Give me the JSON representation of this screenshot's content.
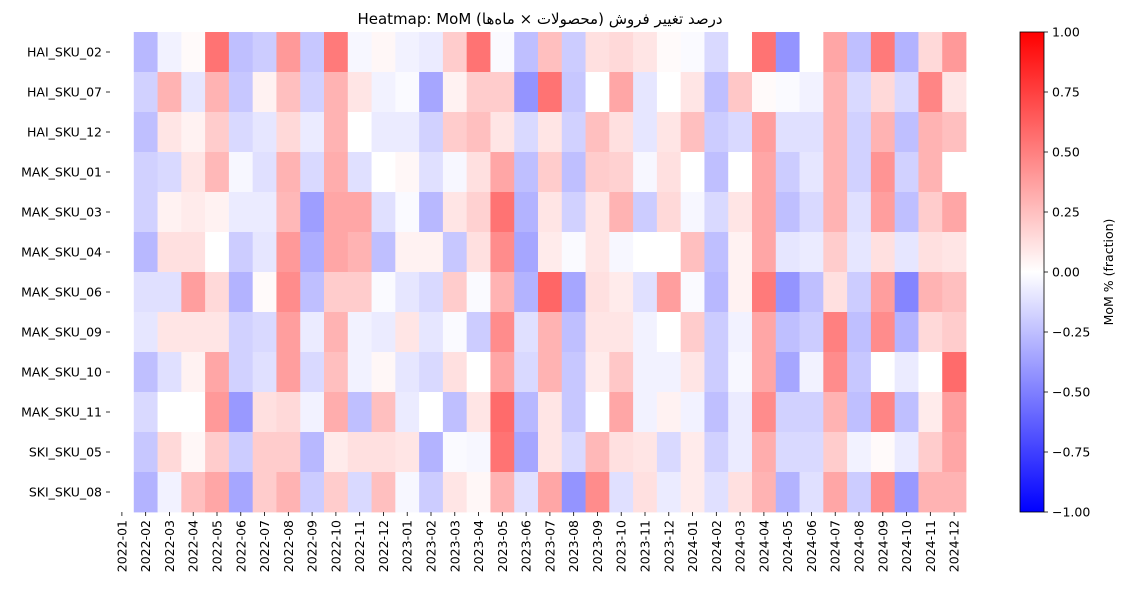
{
  "chart_data": {
    "type": "heatmap",
    "title": "Heatmap: MoM درصد تغییر فروش (محصولات × ماه‌ها)",
    "colorbar_label": "MoM % (fraction)",
    "colormap": "bwr",
    "colors": {
      "low": "#0000ff",
      "mid": "#ffffff",
      "high": "#ff0000"
    },
    "vmin": -1.0,
    "vmax": 1.0,
    "colorbar_ticks": [
      {
        "value": 1.0,
        "label": "1.00"
      },
      {
        "value": 0.75,
        "label": "0.75"
      },
      {
        "value": 0.5,
        "label": "0.50"
      },
      {
        "value": 0.25,
        "label": "0.25"
      },
      {
        "value": 0.0,
        "label": "0.00"
      },
      {
        "value": -0.25,
        "label": "−0.25"
      },
      {
        "value": -0.5,
        "label": "−0.50"
      },
      {
        "value": -0.75,
        "label": "−0.75"
      },
      {
        "value": -1.0,
        "label": "−1.00"
      }
    ],
    "rows": [
      "HAI_SKU_02",
      "HAI_SKU_07",
      "HAI_SKU_12",
      "MAK_SKU_01",
      "MAK_SKU_03",
      "MAK_SKU_04",
      "MAK_SKU_06",
      "MAK_SKU_09",
      "MAK_SKU_10",
      "MAK_SKU_11",
      "SKI_SKU_05",
      "SKI_SKU_08"
    ],
    "columns": [
      "2022-01",
      "2022-02",
      "2022-03",
      "2022-04",
      "2022-05",
      "2022-06",
      "2022-07",
      "2022-08",
      "2022-09",
      "2022-10",
      "2022-11",
      "2022-12",
      "2023-01",
      "2023-02",
      "2023-03",
      "2023-04",
      "2023-05",
      "2023-06",
      "2023-07",
      "2023-08",
      "2023-09",
      "2023-10",
      "2023-11",
      "2023-12",
      "2024-01",
      "2024-02",
      "2024-03",
      "2024-04",
      "2024-05",
      "2024-06",
      "2024-07",
      "2024-08",
      "2024-09",
      "2024-10",
      "2024-11",
      "2024-12"
    ],
    "values": [
      [
        null,
        -0.28,
        -0.05,
        0.02,
        0.55,
        -0.25,
        -0.2,
        0.4,
        -0.22,
        0.52,
        -0.03,
        0.03,
        -0.05,
        -0.08,
        0.2,
        0.55,
        -0.02,
        -0.25,
        0.25,
        -0.2,
        0.12,
        0.15,
        0.1,
        0.02,
        -0.02,
        -0.15,
        0.0,
        0.55,
        -0.42,
        0.0,
        0.35,
        -0.25,
        0.52,
        -0.3,
        0.15,
        0.4
      ],
      [
        null,
        -0.18,
        0.3,
        -0.1,
        0.3,
        -0.22,
        0.05,
        0.25,
        -0.18,
        0.3,
        0.1,
        -0.05,
        -0.02,
        -0.35,
        0.05,
        0.2,
        0.2,
        -0.42,
        0.55,
        -0.22,
        0.0,
        0.35,
        -0.1,
        0.0,
        0.1,
        -0.25,
        0.22,
        0.02,
        -0.02,
        -0.05,
        0.3,
        -0.15,
        0.15,
        -0.15,
        0.48,
        0.1
      ],
      [
        null,
        -0.25,
        0.1,
        0.05,
        0.2,
        -0.15,
        -0.1,
        0.15,
        -0.08,
        0.3,
        0.0,
        -0.08,
        -0.08,
        -0.18,
        0.2,
        0.25,
        0.1,
        -0.15,
        0.1,
        -0.18,
        0.25,
        0.12,
        -0.1,
        0.1,
        0.25,
        -0.2,
        -0.15,
        0.38,
        -0.12,
        -0.12,
        0.3,
        -0.18,
        0.3,
        -0.25,
        0.3,
        0.25
      ],
      [
        null,
        -0.18,
        -0.15,
        0.1,
        0.28,
        -0.03,
        -0.12,
        0.3,
        -0.15,
        0.32,
        -0.12,
        0.0,
        0.03,
        -0.12,
        -0.03,
        0.12,
        0.35,
        -0.25,
        0.2,
        -0.25,
        0.2,
        0.18,
        -0.03,
        0.12,
        0.0,
        -0.25,
        0.0,
        0.35,
        -0.2,
        -0.1,
        0.3,
        -0.18,
        0.42,
        -0.18,
        0.3,
        0.0
      ],
      [
        null,
        -0.18,
        0.05,
        0.08,
        0.05,
        -0.08,
        -0.08,
        0.28,
        -0.38,
        0.35,
        0.35,
        -0.12,
        -0.02,
        -0.28,
        0.1,
        0.18,
        0.55,
        -0.3,
        0.1,
        -0.18,
        0.1,
        0.3,
        -0.2,
        0.15,
        -0.03,
        -0.15,
        0.1,
        0.35,
        -0.25,
        -0.15,
        0.3,
        -0.12,
        0.38,
        -0.25,
        0.2,
        0.35
      ],
      [
        null,
        -0.28,
        0.12,
        0.12,
        0.0,
        -0.2,
        -0.1,
        0.4,
        -0.32,
        0.35,
        0.3,
        -0.25,
        0.05,
        0.05,
        -0.22,
        0.12,
        0.45,
        -0.35,
        0.08,
        -0.02,
        0.1,
        -0.03,
        0.0,
        0.0,
        0.25,
        -0.25,
        0.05,
        0.35,
        -0.1,
        -0.08,
        0.2,
        -0.1,
        0.12,
        -0.1,
        0.12,
        0.1
      ],
      [
        null,
        -0.12,
        -0.12,
        0.38,
        0.15,
        -0.3,
        0.02,
        0.45,
        -0.25,
        0.2,
        0.2,
        -0.02,
        -0.1,
        -0.15,
        0.2,
        -0.02,
        0.3,
        -0.3,
        0.6,
        -0.35,
        0.12,
        0.08,
        -0.12,
        0.38,
        -0.02,
        -0.28,
        0.05,
        0.52,
        -0.42,
        -0.25,
        0.12,
        -0.2,
        0.38,
        -0.48,
        0.3,
        0.25
      ],
      [
        null,
        -0.1,
        0.1,
        0.1,
        0.1,
        -0.18,
        -0.15,
        0.38,
        -0.08,
        0.3,
        -0.05,
        -0.08,
        0.1,
        -0.1,
        -0.02,
        -0.2,
        0.45,
        -0.12,
        0.3,
        -0.25,
        0.1,
        0.1,
        -0.05,
        0.0,
        0.2,
        -0.2,
        -0.05,
        0.35,
        -0.25,
        -0.2,
        0.5,
        -0.25,
        0.45,
        -0.3,
        0.15,
        0.2
      ],
      [
        null,
        -0.25,
        -0.12,
        0.05,
        0.35,
        -0.18,
        -0.12,
        0.38,
        -0.15,
        0.25,
        -0.05,
        0.03,
        -0.1,
        -0.15,
        0.12,
        0.0,
        0.35,
        -0.15,
        0.3,
        -0.22,
        0.08,
        0.22,
        -0.05,
        -0.05,
        0.1,
        -0.2,
        -0.03,
        0.35,
        -0.35,
        -0.05,
        0.45,
        -0.22,
        0.0,
        -0.08,
        0.0,
        0.58
      ],
      [
        null,
        -0.15,
        0.0,
        0.0,
        0.4,
        -0.4,
        0.12,
        0.15,
        -0.05,
        0.32,
        -0.25,
        0.25,
        -0.08,
        0.0,
        -0.25,
        0.1,
        0.58,
        -0.28,
        0.1,
        -0.22,
        0.0,
        0.35,
        -0.05,
        0.05,
        -0.05,
        -0.25,
        -0.08,
        0.45,
        -0.18,
        -0.18,
        0.3,
        -0.25,
        0.48,
        -0.25,
        0.08,
        0.38
      ],
      [
        null,
        -0.22,
        0.15,
        0.03,
        0.2,
        -0.2,
        0.2,
        0.2,
        -0.28,
        0.08,
        0.12,
        0.12,
        0.1,
        -0.3,
        -0.02,
        -0.03,
        0.55,
        -0.35,
        0.1,
        -0.15,
        0.28,
        0.12,
        0.1,
        -0.15,
        0.08,
        -0.18,
        -0.08,
        0.32,
        -0.15,
        -0.15,
        0.2,
        -0.05,
        0.02,
        -0.08,
        0.2,
        0.35
      ],
      [
        null,
        -0.3,
        -0.05,
        0.25,
        0.35,
        -0.35,
        0.2,
        0.3,
        -0.2,
        0.2,
        -0.15,
        0.25,
        -0.03,
        -0.2,
        0.1,
        0.03,
        0.3,
        -0.12,
        0.35,
        -0.42,
        0.45,
        -0.12,
        0.12,
        -0.08,
        0.08,
        -0.12,
        0.12,
        0.3,
        -0.3,
        -0.12,
        0.35,
        -0.2,
        0.45,
        -0.4,
        0.3,
        0.3
      ]
    ]
  }
}
